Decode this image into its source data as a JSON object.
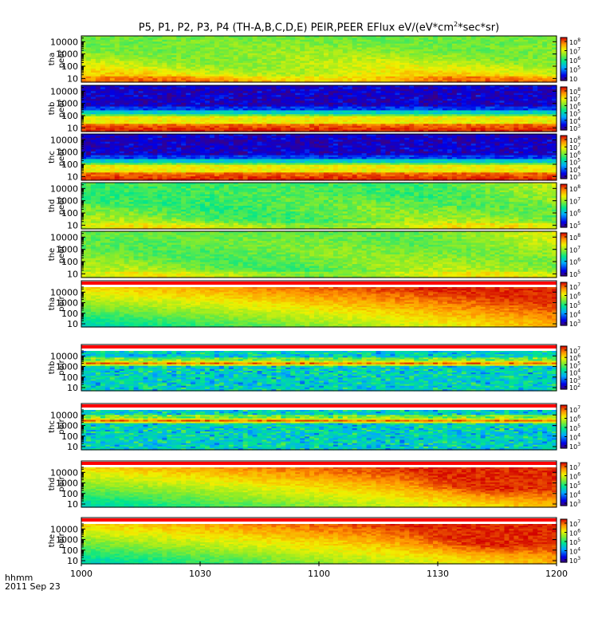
{
  "title": {
    "prefix": "P5, P1, P2, P3, P4 (TH-A,B,C,D,E) PEIR,PEER EFlux eV/(eV*cm",
    "sup": "2",
    "suffix": "*sec*sr)"
  },
  "footer": {
    "time_label": "hhmm",
    "date_label": "2011 Sep 23"
  },
  "colors": {
    "palette": "rainbow",
    "low": "#1e0aa0",
    "high": "#d40000",
    "saturated_band": "#ff0000"
  },
  "chart_data": {
    "type": "heatmap",
    "x_axis": {
      "ticks": [
        "1000",
        "1030",
        "1100",
        "1130",
        "1200"
      ],
      "range": [
        "10:00",
        "12:00"
      ]
    },
    "y_axis": {
      "scale": "log",
      "unit": "eV",
      "ticks": [
        "10",
        "100",
        "1000",
        "10000"
      ],
      "range": [
        5,
        30000
      ]
    },
    "panels": [
      {
        "label": [
          "tha",
          "peer"
        ],
        "pattern": "smooth",
        "bottom": 0.78,
        "top": 0.52,
        "decay": 0.55,
        "noise": 0.05,
        "sat_band": false,
        "cb": {
          "range": [
            4.5,
            8
          ],
          "ticks": [
            "10",
            "10",
            "10",
            "10",
            "10"
          ],
          "exps": [
            "8",
            "7",
            "6",
            "5",
            ""
          ]
        }
      },
      {
        "label": [
          "thb",
          "peer"
        ],
        "pattern": "banded",
        "bottom": 0.97,
        "top": 0.02,
        "band_low": 0.68,
        "band_high": 0.45,
        "noise": 0.05,
        "sat_band": false,
        "cb": {
          "range": [
            3,
            8
          ],
          "ticks": [
            "10",
            "10",
            "10",
            "10",
            "10",
            "10"
          ],
          "exps": [
            "8",
            "7",
            "6",
            "5",
            "4",
            "3"
          ]
        }
      },
      {
        "label": [
          "thc",
          "peer"
        ],
        "pattern": "banded",
        "bottom": 0.97,
        "top": 0.02,
        "band_low": 0.72,
        "band_high": 0.5,
        "noise": 0.05,
        "sat_band": false,
        "cb": {
          "range": [
            3,
            8
          ],
          "ticks": [
            "10",
            "10",
            "10",
            "10",
            "10",
            "10"
          ],
          "exps": [
            "8",
            "7",
            "6",
            "5",
            "4",
            "3"
          ]
        }
      },
      {
        "label": [
          "thd",
          "peer"
        ],
        "pattern": "smooth",
        "bottom": 0.62,
        "top": 0.5,
        "decay": 0.4,
        "noise": 0.06,
        "sat_band": false,
        "hot_right": true,
        "cb": {
          "range": [
            4,
            8
          ],
          "ticks": [
            "10",
            "10",
            "10",
            "10"
          ],
          "exps": [
            "8",
            "7",
            "6",
            "5"
          ]
        }
      },
      {
        "label": [
          "the",
          "peer"
        ],
        "pattern": "smooth",
        "bottom": 0.6,
        "top": 0.55,
        "decay": 0.45,
        "noise": 0.05,
        "sat_band": false,
        "hot_right": true,
        "cb": {
          "range": [
            4,
            8
          ],
          "ticks": [
            "10",
            "10",
            "10",
            "10"
          ],
          "exps": [
            "8",
            "7",
            "6",
            "5"
          ]
        }
      },
      {
        "label": [
          "tha",
          "peir"
        ],
        "pattern": "ion",
        "noise": 0.04,
        "sat_band": true,
        "cb": {
          "range": [
            3,
            7
          ],
          "ticks": [
            "10",
            "10",
            "10",
            "10",
            "10"
          ],
          "exps": [
            "7",
            "6",
            "5",
            "4",
            "3"
          ]
        }
      },
      {
        "label": [
          "thb",
          "peir"
        ],
        "pattern": "noisy",
        "band": 0.68,
        "noise": 0.09,
        "sat_band": true,
        "cb": {
          "range": [
            2,
            7
          ],
          "ticks": [
            "10",
            "10",
            "10",
            "10",
            "10",
            "10"
          ],
          "exps": [
            "7",
            "6",
            "5",
            "4",
            "3",
            "2"
          ]
        }
      },
      {
        "label": [
          "thc",
          "peir"
        ],
        "pattern": "noisy",
        "band": 0.72,
        "noise": 0.09,
        "sat_band": true,
        "cb": {
          "range": [
            2,
            7
          ],
          "ticks": [
            "10",
            "10",
            "10",
            "10",
            "10"
          ],
          "exps": [
            "7",
            "6",
            "5",
            "4",
            "3"
          ]
        }
      },
      {
        "label": [
          "thd",
          "peir"
        ],
        "pattern": "ion",
        "noise": 0.04,
        "sat_band": true,
        "hot_right": true,
        "cb": {
          "range": [
            3,
            7
          ],
          "ticks": [
            "10",
            "10",
            "10",
            "10",
            "10"
          ],
          "exps": [
            "7",
            "6",
            "5",
            "4",
            "3"
          ]
        }
      },
      {
        "label": [
          "the",
          "peir"
        ],
        "pattern": "ion",
        "noise": 0.04,
        "sat_band": true,
        "hot_right": true,
        "cb": {
          "range": [
            3,
            7
          ],
          "ticks": [
            "10",
            "10",
            "10",
            "10",
            "10"
          ],
          "exps": [
            "7",
            "6",
            "5",
            "4",
            "3"
          ]
        }
      }
    ]
  }
}
